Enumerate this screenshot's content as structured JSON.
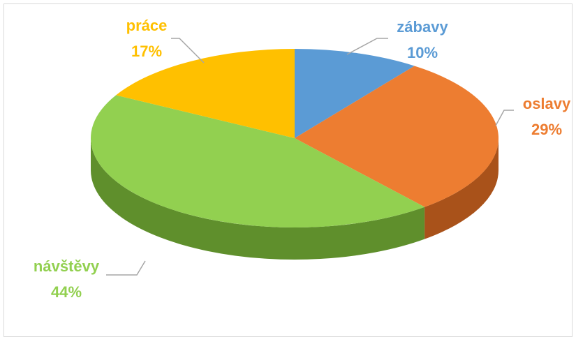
{
  "chart_data": {
    "type": "pie",
    "categories": [
      "zábavy",
      "oslavy",
      "návštěvy",
      "práce"
    ],
    "values": [
      10,
      29,
      44,
      17
    ],
    "value_labels": [
      "10%",
      "29%",
      "44%",
      "17%"
    ],
    "colors": [
      "#5b9bd5",
      "#ed7d31",
      "#92d050",
      "#ffc000"
    ],
    "side_colors": [
      "#3f78ab",
      "#a9521a",
      "#5f8f2c",
      "#c49300"
    ]
  }
}
